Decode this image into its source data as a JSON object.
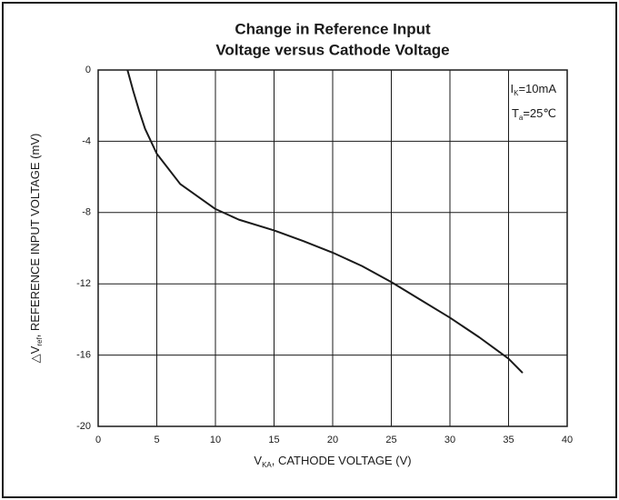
{
  "chart_data": {
    "type": "line",
    "title": [
      "Change in Reference Input",
      "Voltage versus Cathode Voltage"
    ],
    "x_label": [
      "V",
      "KA",
      ", CATHODE VOLTAGE    (V)"
    ],
    "y_label": [
      "△V",
      "ref",
      ", REFERENCE INPUT VOLTAGE    (mV)"
    ],
    "annotations": [
      [
        "I",
        "K",
        "=10mA"
      ],
      [
        "T",
        "a",
        "=25℃"
      ]
    ],
    "x": [
      2.5,
      3,
      3.5,
      4,
      5,
      7,
      10,
      12,
      15,
      17.5,
      20,
      22.5,
      25,
      27.5,
      30,
      32.5,
      35,
      36.2
    ],
    "series": [
      {
        "color": "#1a1a1a",
        "values": [
          0,
          -1.2,
          -2.3,
          -3.3,
          -4.7,
          -6.4,
          -7.8,
          -8.4,
          -9.0,
          -9.6,
          -10.25,
          -11.0,
          -11.9,
          -12.9,
          -13.9,
          -15.0,
          -16.2,
          -17.0
        ]
      }
    ],
    "xlim": [
      0,
      40
    ],
    "xticks": [
      0,
      5,
      10,
      15,
      20,
      25,
      30,
      35,
      40
    ],
    "ylim": [
      -20,
      0
    ],
    "yticks": [
      0,
      -4,
      -8,
      -12,
      -16,
      -20
    ],
    "grid": true
  }
}
